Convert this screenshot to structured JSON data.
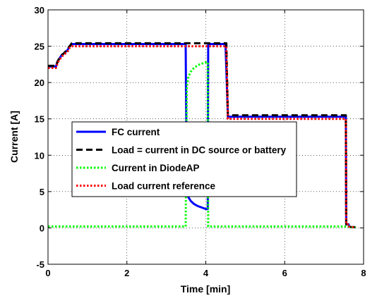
{
  "chart_data": {
    "type": "line",
    "title": "",
    "xlabel": "Time [min]",
    "ylabel": "Current [A]",
    "xlim": [
      0,
      8
    ],
    "ylim": [
      -5,
      30
    ],
    "xticks": [
      0,
      2,
      4,
      6,
      8
    ],
    "yticks": [
      -5,
      0,
      5,
      10,
      15,
      20,
      25,
      30
    ],
    "grid": true,
    "legend_position": "center",
    "series": [
      {
        "name": "FC current",
        "color": "#0000ff",
        "style": "solid",
        "x": [
          0,
          0.2,
          0.25,
          0.35,
          0.4,
          0.5,
          0.55,
          0.6,
          3.49,
          3.5,
          3.52,
          3.56,
          3.62,
          3.7,
          3.8,
          3.9,
          4.0,
          4.05,
          4.06,
          4.5,
          4.56,
          7.55,
          7.56,
          7.62,
          7.63,
          7.7,
          7.8
        ],
        "y": [
          22.2,
          22.2,
          23.0,
          23.8,
          24.0,
          24.5,
          25.0,
          25.3,
          25.3,
          17.0,
          5.5,
          4.2,
          3.7,
          3.3,
          3.0,
          2.8,
          2.6,
          2.6,
          25.3,
          25.3,
          15.3,
          15.3,
          0.5,
          0.5,
          0.2,
          0.1,
          0.1
        ]
      },
      {
        "name": "Load = current in DC source or battery",
        "color": "#000000",
        "style": "dashed",
        "x": [
          0,
          0.2,
          0.25,
          0.35,
          0.4,
          0.5,
          0.55,
          0.6,
          4.52,
          4.56,
          7.55,
          7.56,
          7.62,
          7.63,
          7.7,
          7.8
        ],
        "y": [
          22.3,
          22.3,
          23.0,
          23.8,
          24.0,
          24.6,
          25.0,
          25.4,
          25.4,
          15.5,
          15.5,
          0.5,
          0.5,
          0.2,
          0.1,
          0.1
        ]
      },
      {
        "name": "Current in DiodeAP",
        "color": "#00ff00",
        "style": "dotted",
        "x": [
          0,
          3.49,
          3.5,
          3.52,
          3.56,
          3.62,
          3.7,
          3.8,
          3.9,
          4.0,
          4.05,
          4.06,
          7.55,
          7.56,
          7.7,
          7.8
        ],
        "y": [
          0.2,
          0.2,
          8.0,
          19.5,
          20.8,
          21.5,
          22.0,
          22.4,
          22.6,
          22.8,
          22.8,
          0.2,
          0.2,
          0.2,
          0.1,
          0.1
        ]
      },
      {
        "name": "Load current reference",
        "color": "#ff0000",
        "style": "dotted",
        "x": [
          0,
          0.2,
          0.25,
          0.35,
          0.4,
          0.5,
          0.55,
          0.6,
          4.52,
          4.56,
          7.55,
          7.56,
          7.62,
          7.63,
          7.7,
          7.8
        ],
        "y": [
          22.0,
          22.0,
          22.8,
          23.6,
          23.8,
          24.3,
          24.8,
          25.0,
          25.0,
          15.0,
          15.0,
          0.5,
          0.5,
          0.2,
          0.1,
          0.1
        ]
      }
    ]
  }
}
